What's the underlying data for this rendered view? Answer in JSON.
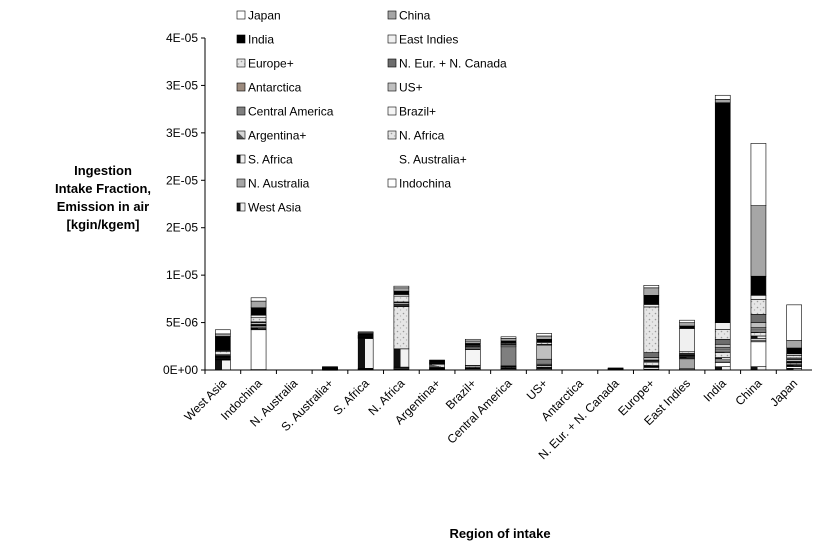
{
  "chart_data": {
    "type": "bar",
    "stacked": true,
    "xlabel": "Region of intake",
    "ylabel_lines": [
      "Ingestion",
      "Intake Fraction,",
      "Emission in air",
      "[kgin/kgem]"
    ],
    "y_tick_labels": [
      "0E+00",
      "5E-06",
      "1E-05",
      "2E-05",
      "2E-05",
      "3E-05",
      "3E-05",
      "4E-05"
    ],
    "ylim": [
      0,
      4e-05
    ],
    "legend_placement": "top-left",
    "categories": [
      "West Asia",
      "Indochina",
      "N. Australia",
      "S. Australia+",
      "S. Africa",
      "N. Africa",
      "Argentina+",
      "Brazil+",
      "Central America",
      "US+",
      "Antarctica",
      "N. Eur. + N. Canada",
      "Europe+",
      "East Indies",
      "India",
      "China",
      "Japan"
    ],
    "series": [
      {
        "name": "West Asia",
        "color": "#f2f2f2",
        "pattern": "halfblack",
        "values": [
          1.2e-06,
          5e-08,
          0,
          2e-08,
          5e-08,
          1e-07,
          5e-08,
          5e-08,
          5e-08,
          5e-08,
          0,
          0,
          1e-07,
          5e-08,
          4e-07,
          4e-07,
          2e-07
        ]
      },
      {
        "name": "Indochina",
        "color": "#ffffff",
        "values": [
          5e-08,
          4.8e-06,
          0,
          2e-08,
          5e-08,
          1e-07,
          5e-08,
          1e-07,
          1e-07,
          1e-07,
          0,
          0,
          2e-07,
          1e-07,
          5e-07,
          3e-06,
          2e-07
        ]
      },
      {
        "name": "N. Australia",
        "color": "#a6a6a6",
        "values": [
          5e-08,
          1e-07,
          0,
          2e-08,
          5e-08,
          1e-07,
          5e-08,
          5e-08,
          5e-08,
          1e-07,
          0,
          0,
          1e-07,
          1.2e-06,
          2e-07,
          2e-07,
          1e-07
        ]
      },
      {
        "name": "S. Australia+",
        "color": "#ffffff",
        "values": [
          5e-08,
          5e-08,
          0,
          2e-08,
          5e-08,
          5e-08,
          5e-08,
          5e-08,
          5e-08,
          5e-08,
          0,
          0,
          5e-08,
          1e-07,
          2e-07,
          2e-07,
          5e-08
        ]
      },
      {
        "name": "S. Africa",
        "color": "#bfbfbf",
        "pattern": "halfblack",
        "values": [
          5e-08,
          1e-07,
          0,
          2e-08,
          3.6e-06,
          2.2e-06,
          5e-08,
          5e-08,
          5e-08,
          5e-08,
          0,
          0,
          1e-07,
          1e-07,
          2e-07,
          3e-07,
          1e-07
        ]
      },
      {
        "name": "N. Africa",
        "color": "#e8e8e8",
        "pattern": "speckle",
        "values": [
          1e-07,
          2e-07,
          0,
          2e-08,
          5e-08,
          5.1e-06,
          5e-08,
          2e-07,
          1e-07,
          2e-07,
          0,
          0,
          4e-07,
          1e-07,
          6e-07,
          4e-07,
          2e-07
        ]
      },
      {
        "name": "Argentina+",
        "color": "#b8b8b8",
        "pattern": "halfdark",
        "values": [
          5e-08,
          5e-08,
          0,
          2e-08,
          5e-08,
          5e-08,
          4e-07,
          5e-08,
          5e-08,
          5e-08,
          0,
          0,
          5e-08,
          5e-08,
          1e-07,
          1e-07,
          5e-08
        ]
      },
      {
        "name": "Brazil+",
        "color": "#f5f5f5",
        "values": [
          5e-08,
          5e-08,
          0,
          2e-08,
          5e-08,
          1e-07,
          5e-08,
          1.9e-06,
          5e-08,
          1e-07,
          0,
          0,
          1e-07,
          5e-08,
          2e-07,
          2e-07,
          5e-08
        ]
      },
      {
        "name": "Central America",
        "color": "#7f7f7f",
        "values": [
          5e-08,
          1e-07,
          0,
          2e-08,
          5e-08,
          1e-07,
          5e-08,
          1e-07,
          2.3e-06,
          6e-07,
          0,
          0,
          1e-07,
          5e-08,
          3e-07,
          3e-07,
          1e-07
        ]
      },
      {
        "name": "US+",
        "color": "#bfbfbf",
        "values": [
          1e-07,
          2e-07,
          0,
          2e-08,
          5e-08,
          2e-07,
          5e-08,
          2e-07,
          2e-07,
          1.7e-06,
          0,
          0,
          3e-07,
          1e-07,
          4e-07,
          6e-07,
          2e-07
        ]
      },
      {
        "name": "Antarctica",
        "color": "#9c8b7e",
        "values": [
          0,
          0,
          0,
          0,
          0,
          0,
          0,
          0,
          0,
          0,
          0,
          0,
          0,
          0,
          0,
          0,
          0
        ]
      },
      {
        "name": "N. Eur. + N. Canada",
        "color": "#6e6e6e",
        "values": [
          1e-07,
          1e-07,
          0,
          2e-08,
          5e-08,
          1e-07,
          5e-08,
          5e-08,
          1e-07,
          1e-07,
          0,
          5e-08,
          6e-07,
          1e-07,
          6e-07,
          1e-06,
          2e-07
        ]
      },
      {
        "name": "Europe+",
        "color": "#cfcfcf",
        "pattern": "speckle",
        "values": [
          4e-07,
          5e-07,
          0,
          2e-08,
          5e-08,
          7e-07,
          5e-08,
          1e-07,
          1e-07,
          2e-07,
          0,
          5e-08,
          5.5e-06,
          2e-07,
          1.2e-06,
          1.8e-06,
          3e-07
        ]
      },
      {
        "name": "East Indies",
        "color": "#f0f0f0",
        "values": [
          1e-07,
          3e-07,
          0,
          2e-08,
          5e-08,
          2e-07,
          5e-08,
          1e-07,
          1e-07,
          1e-07,
          0,
          0,
          3e-07,
          2.8e-06,
          8e-07,
          5e-07,
          2e-07
        ]
      },
      {
        "name": "India",
        "color": "#000000",
        "values": [
          1.7e-06,
          9e-07,
          0,
          1e-07,
          2e-07,
          4e-07,
          1e-07,
          2e-07,
          2e-07,
          3e-07,
          0,
          5e-08,
          1.1e-06,
          3e-07,
          2.65e-05,
          2.3e-06,
          7e-07
        ]
      },
      {
        "name": "China",
        "color": "#a6a6a6",
        "values": [
          3e-07,
          8e-07,
          0,
          2e-08,
          1e-07,
          4e-07,
          5e-08,
          3e-07,
          3e-07,
          4e-07,
          0,
          5e-08,
          9e-07,
          4e-07,
          4e-07,
          8.5e-06,
          9e-07
        ]
      },
      {
        "name": "Japan",
        "color": "#ffffff",
        "values": [
          5e-07,
          4e-07,
          0,
          2e-08,
          1e-07,
          2e-07,
          5e-08,
          2e-07,
          2e-07,
          3e-07,
          0,
          5e-08,
          3e-07,
          3e-07,
          5e-07,
          7.5e-06,
          4.3e-06
        ]
      }
    ],
    "legend_order": [
      "Japan",
      "China",
      "India",
      "East Indies",
      "Europe+",
      "N. Eur. + N. Canada",
      "Antarctica",
      "US+",
      "Central America",
      "Brazil+",
      "Argentina+",
      "N. Africa",
      "S. Africa",
      "S. Australia+",
      "N. Australia",
      "Indochina",
      "West Asia"
    ]
  }
}
